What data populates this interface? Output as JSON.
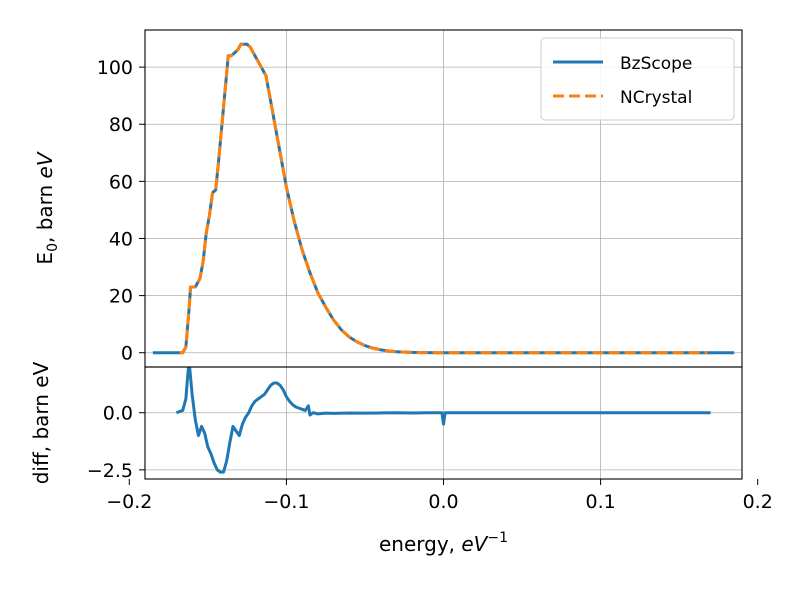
{
  "chart_data": [
    {
      "type": "line",
      "panel": "top",
      "xlim": [
        -0.19,
        0.19
      ],
      "ylim": [
        -5,
        113
      ],
      "yticks": [
        0,
        20,
        40,
        60,
        80,
        100
      ],
      "xticks": [
        -0.2,
        -0.1,
        0.0,
        0.1,
        0.2
      ],
      "grid": true,
      "ylabel_main": "E",
      "ylabel_sub": "0",
      "ylabel_rest": ", barn ",
      "ylabel_unit": "eV",
      "legend_placement": "top-right",
      "series": [
        {
          "name": "BzScope",
          "color": "#1f77b4",
          "style": "solid",
          "x": [
            -0.185,
            -0.17,
            -0.166,
            -0.164,
            -0.162,
            -0.161,
            -0.158,
            -0.155,
            -0.153,
            -0.151,
            -0.149,
            -0.147,
            -0.145,
            -0.143,
            -0.141,
            -0.139,
            -0.137,
            -0.135,
            -0.133,
            -0.131,
            -0.129,
            -0.127,
            -0.125,
            -0.123,
            -0.121,
            -0.119,
            -0.117,
            -0.115,
            -0.113,
            -0.11,
            -0.105,
            -0.1,
            -0.095,
            -0.09,
            -0.085,
            -0.08,
            -0.075,
            -0.07,
            -0.065,
            -0.06,
            -0.055,
            -0.05,
            -0.045,
            -0.04,
            -0.035,
            -0.03,
            -0.025,
            -0.02,
            -0.015,
            -0.01,
            -0.005,
            0.0,
            0.02,
            0.05,
            0.1,
            0.15,
            0.185
          ],
          "y": [
            0,
            0,
            0,
            2,
            15,
            23,
            23,
            26,
            32,
            42,
            48,
            56,
            57,
            68,
            80,
            92,
            104,
            104,
            105,
            106,
            108,
            108,
            108,
            107,
            105,
            103,
            101,
            99,
            97,
            88,
            73,
            58,
            46,
            36,
            28,
            21,
            16,
            11.5,
            8,
            5.5,
            3.8,
            2.5,
            1.6,
            1.0,
            0.6,
            0.35,
            0.2,
            0.1,
            0.05,
            0.02,
            0.01,
            0,
            0,
            0,
            0,
            0,
            0
          ]
        },
        {
          "name": "NCrystal",
          "color": "#ff7f0e",
          "style": "dashed",
          "x": [
            -0.168,
            -0.166,
            -0.164,
            -0.162,
            -0.161,
            -0.158,
            -0.155,
            -0.153,
            -0.151,
            -0.149,
            -0.147,
            -0.145,
            -0.143,
            -0.141,
            -0.139,
            -0.137,
            -0.135,
            -0.133,
            -0.131,
            -0.129,
            -0.127,
            -0.125,
            -0.123,
            -0.121,
            -0.119,
            -0.117,
            -0.115,
            -0.113,
            -0.11,
            -0.105,
            -0.1,
            -0.095,
            -0.09,
            -0.085,
            -0.08,
            -0.075,
            -0.07,
            -0.065,
            -0.06,
            -0.055,
            -0.05,
            -0.045,
            -0.04,
            -0.035,
            -0.03,
            -0.025,
            -0.02,
            -0.015,
            -0.01,
            -0.005,
            0.0,
            0.02,
            0.05,
            0.1,
            0.15,
            0.168
          ],
          "y": [
            0,
            0,
            2,
            15,
            23,
            23,
            26,
            32,
            42,
            48,
            56,
            57,
            68,
            80,
            92,
            104,
            104,
            105,
            106,
            108,
            108,
            108,
            107,
            105,
            103,
            101,
            99,
            97,
            88,
            73,
            58,
            46,
            36,
            28,
            21,
            16,
            11.5,
            8,
            5.5,
            3.8,
            2.5,
            1.6,
            1.0,
            0.6,
            0.35,
            0.2,
            0.1,
            0.05,
            0.02,
            0.01,
            0,
            0,
            0,
            0,
            0,
            0
          ]
        }
      ]
    },
    {
      "type": "line",
      "panel": "bottom",
      "xlim": [
        -0.19,
        0.19
      ],
      "ylim": [
        -2.9,
        2.0
      ],
      "yticks": [
        -2.5,
        0.0
      ],
      "ytick_labels": [
        "−2.5",
        "0.0"
      ],
      "xticks": [
        -0.2,
        -0.1,
        0.0,
        0.1,
        0.2
      ],
      "xtick_labels": [
        "−0.2",
        "−0.1",
        "0.0",
        "0.1",
        "0.2"
      ],
      "grid": true,
      "ylabel": "diff, barn eV",
      "xlabel_main": "energy, ",
      "xlabel_unit": "eV",
      "xlabel_exp": "−1",
      "series": [
        {
          "color": "#1f77b4",
          "x": [
            -0.17,
            -0.166,
            -0.164,
            -0.162,
            -0.16,
            -0.158,
            -0.156,
            -0.154,
            -0.152,
            -0.15,
            -0.148,
            -0.146,
            -0.144,
            -0.142,
            -0.14,
            -0.138,
            -0.136,
            -0.134,
            -0.132,
            -0.13,
            -0.128,
            -0.126,
            -0.124,
            -0.122,
            -0.12,
            -0.118,
            -0.116,
            -0.114,
            -0.112,
            -0.11,
            -0.108,
            -0.106,
            -0.104,
            -0.102,
            -0.1,
            -0.098,
            -0.096,
            -0.094,
            -0.092,
            -0.09,
            -0.088,
            -0.086,
            -0.085,
            -0.083,
            -0.08,
            -0.075,
            -0.07,
            -0.06,
            -0.05,
            -0.04,
            -0.03,
            -0.02,
            -0.01,
            -0.001,
            0.0,
            0.001,
            0.02,
            0.05,
            0.1,
            0.15,
            0.17
          ],
          "y": [
            0,
            0.1,
            0.6,
            2.3,
            0.8,
            -0.3,
            -1.0,
            -0.6,
            -0.9,
            -1.5,
            -1.8,
            -2.2,
            -2.5,
            -2.6,
            -2.6,
            -2.1,
            -1.3,
            -0.6,
            -0.8,
            -1.0,
            -0.5,
            -0.2,
            0.0,
            0.3,
            0.5,
            0.6,
            0.7,
            0.8,
            1.0,
            1.2,
            1.3,
            1.3,
            1.2,
            1.0,
            0.7,
            0.5,
            0.35,
            0.25,
            0.2,
            0.15,
            0.1,
            0.3,
            -0.1,
            0.0,
            -0.05,
            -0.02,
            -0.03,
            -0.01,
            -0.02,
            -0.01,
            0.0,
            -0.01,
            0.0,
            0.0,
            -0.5,
            0.0,
            0.0,
            0.0,
            0.0,
            0.0,
            0.0
          ]
        }
      ]
    }
  ]
}
